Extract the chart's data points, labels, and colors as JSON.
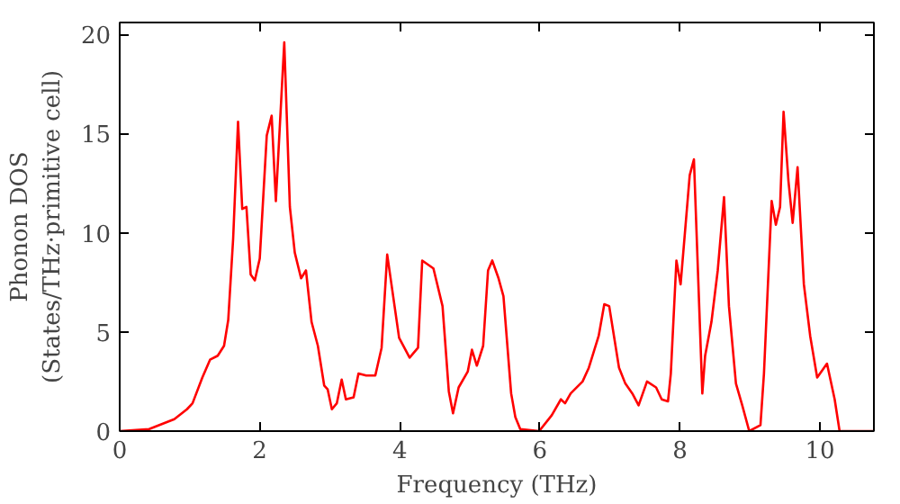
{
  "chart_data": {
    "type": "line",
    "xlabel": "Frequency (THz)",
    "ylabel": "Phonon DOS\n(States/THz·primitive cell)",
    "xlim": [
      0,
      10.77
    ],
    "ylim": [
      0,
      20.6
    ],
    "xticks": [
      0,
      2,
      4,
      6,
      8,
      10
    ],
    "yticks": [
      0,
      5,
      10,
      15,
      20
    ],
    "grid": false,
    "marker": "none",
    "line_style": "solid",
    "series": [
      {
        "color": "#ff0000",
        "x": [
          0,
          0.42,
          0.78,
          0.96,
          1.04,
          1.18,
          1.29,
          1.4,
          1.49,
          1.55,
          1.62,
          1.69,
          1.75,
          1.81,
          1.87,
          1.93,
          2.0,
          2.1,
          2.17,
          2.23,
          2.35,
          2.43,
          2.5,
          2.59,
          2.66,
          2.74,
          2.83,
          2.92,
          2.97,
          3.03,
          3.1,
          3.17,
          3.23,
          3.34,
          3.41,
          3.52,
          3.65,
          3.74,
          3.82,
          3.99,
          4.14,
          4.26,
          4.32,
          4.48,
          4.61,
          4.7,
          4.76,
          4.84,
          4.97,
          5.03,
          5.1,
          5.19,
          5.26,
          5.32,
          5.41,
          5.48,
          5.59,
          5.65,
          5.72,
          5.99,
          6.17,
          6.3,
          6.36,
          6.44,
          6.61,
          6.7,
          6.84,
          6.92,
          6.99,
          7.13,
          7.22,
          7.32,
          7.41,
          7.53,
          7.66,
          7.74,
          7.83,
          7.87,
          7.95,
          8.01,
          8.14,
          8.2,
          8.32,
          8.36,
          8.45,
          8.54,
          8.63,
          8.7,
          8.8,
          8.89,
          8.99,
          9.15,
          9.2,
          9.31,
          9.37,
          9.43,
          9.48,
          9.55,
          9.61,
          9.68,
          9.77,
          9.86,
          9.96,
          10.1,
          10.21,
          10.28,
          10.77
        ],
        "values": [
          0,
          0.1,
          0.6,
          1.1,
          1.4,
          2.7,
          3.6,
          3.8,
          4.3,
          5.6,
          9.7,
          15.6,
          11.2,
          11.3,
          7.9,
          7.6,
          8.7,
          14.9,
          15.9,
          11.6,
          19.6,
          11.3,
          9.0,
          7.7,
          8.1,
          5.5,
          4.3,
          2.3,
          2.1,
          1.1,
          1.4,
          2.6,
          1.6,
          1.7,
          2.9,
          2.8,
          2.8,
          4.2,
          8.9,
          4.7,
          3.7,
          4.2,
          8.6,
          8.2,
          6.3,
          2.0,
          0.9,
          2.2,
          3.0,
          4.1,
          3.3,
          4.3,
          8.1,
          8.6,
          7.7,
          6.8,
          1.9,
          0.7,
          0.1,
          0,
          0.8,
          1.6,
          1.4,
          1.9,
          2.5,
          3.2,
          4.8,
          6.4,
          6.3,
          3.2,
          2.4,
          1.9,
          1.3,
          2.5,
          2.2,
          1.6,
          1.5,
          2.9,
          8.6,
          7.4,
          12.9,
          13.7,
          1.9,
          3.8,
          5.5,
          8.1,
          11.8,
          6.3,
          2.4,
          1.3,
          0,
          0.3,
          2.9,
          11.6,
          10.4,
          11.3,
          16.1,
          12.6,
          10.5,
          13.3,
          7.4,
          4.8,
          2.7,
          3.4,
          1.6,
          0,
          0
        ]
      }
    ]
  }
}
